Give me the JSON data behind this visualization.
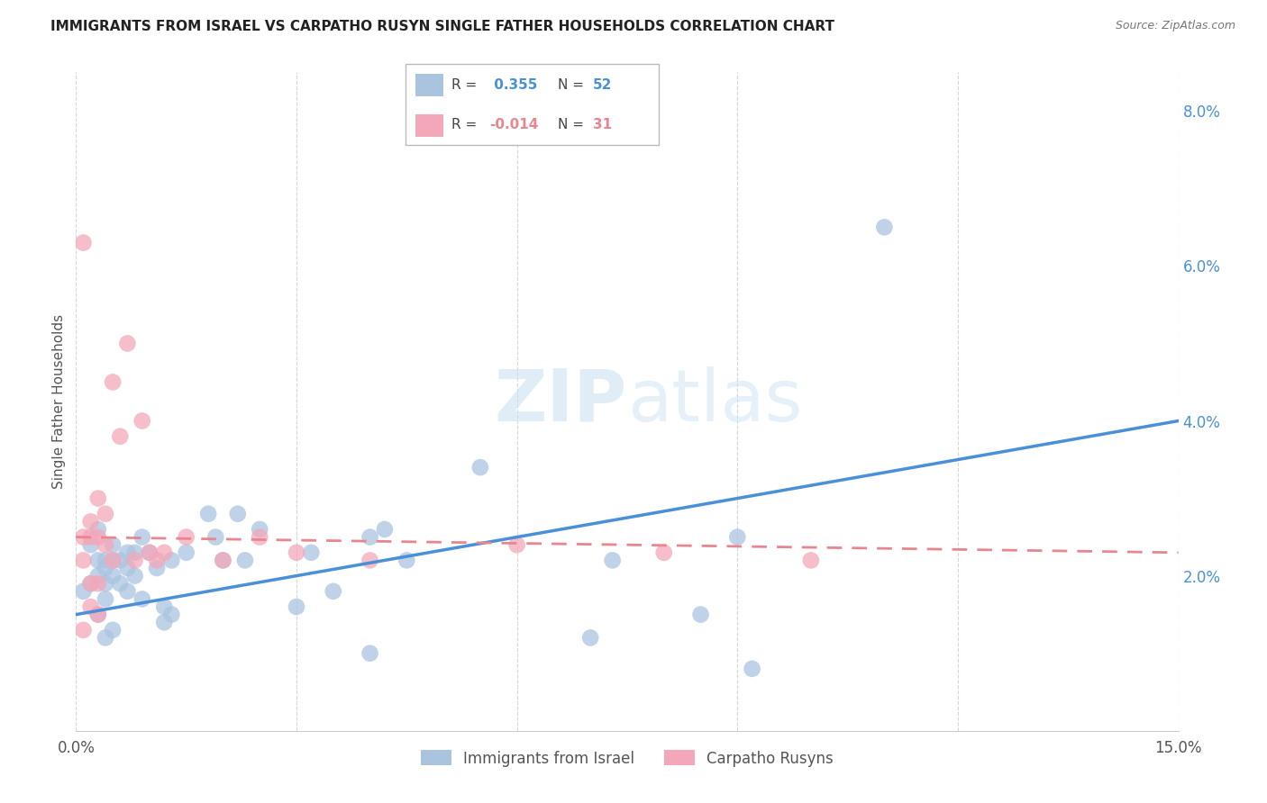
{
  "title": "IMMIGRANTS FROM ISRAEL VS CARPATHO RUSYN SINGLE FATHER HOUSEHOLDS CORRELATION CHART",
  "source": "Source: ZipAtlas.com",
  "ylabel_label": "Single Father Households",
  "xlim": [
    0.0,
    0.15
  ],
  "ylim": [
    0.0,
    0.085
  ],
  "israel_R": 0.355,
  "israel_N": 52,
  "carpatho_R": -0.014,
  "carpatho_N": 31,
  "israel_color": "#aac4e0",
  "carpatho_color": "#f4a7b9",
  "israel_line_color": "#4a90d9",
  "carpatho_line_color": "#e8858f",
  "grid_color": "#cccccc",
  "background_color": "#ffffff",
  "israel_x": [
    0.001,
    0.002,
    0.002,
    0.003,
    0.003,
    0.003,
    0.003,
    0.004,
    0.004,
    0.004,
    0.004,
    0.004,
    0.005,
    0.005,
    0.005,
    0.005,
    0.006,
    0.006,
    0.007,
    0.007,
    0.007,
    0.008,
    0.008,
    0.009,
    0.009,
    0.01,
    0.011,
    0.012,
    0.012,
    0.013,
    0.013,
    0.015,
    0.018,
    0.019,
    0.02,
    0.022,
    0.023,
    0.025,
    0.03,
    0.032,
    0.035,
    0.04,
    0.04,
    0.042,
    0.045,
    0.055,
    0.07,
    0.073,
    0.085,
    0.09,
    0.092,
    0.11
  ],
  "israel_y": [
    0.018,
    0.024,
    0.019,
    0.026,
    0.022,
    0.02,
    0.015,
    0.022,
    0.021,
    0.019,
    0.017,
    0.012,
    0.024,
    0.022,
    0.02,
    0.013,
    0.022,
    0.019,
    0.023,
    0.021,
    0.018,
    0.023,
    0.02,
    0.025,
    0.017,
    0.023,
    0.021,
    0.016,
    0.014,
    0.022,
    0.015,
    0.023,
    0.028,
    0.025,
    0.022,
    0.028,
    0.022,
    0.026,
    0.016,
    0.023,
    0.018,
    0.025,
    0.01,
    0.026,
    0.022,
    0.034,
    0.012,
    0.022,
    0.015,
    0.025,
    0.008,
    0.065
  ],
  "carpatho_x": [
    0.001,
    0.001,
    0.001,
    0.001,
    0.002,
    0.002,
    0.002,
    0.002,
    0.003,
    0.003,
    0.003,
    0.003,
    0.004,
    0.004,
    0.005,
    0.005,
    0.006,
    0.007,
    0.008,
    0.009,
    0.01,
    0.011,
    0.012,
    0.015,
    0.02,
    0.025,
    0.03,
    0.04,
    0.06,
    0.08,
    0.1
  ],
  "carpatho_y": [
    0.063,
    0.025,
    0.022,
    0.013,
    0.027,
    0.025,
    0.019,
    0.016,
    0.03,
    0.025,
    0.019,
    0.015,
    0.028,
    0.024,
    0.045,
    0.022,
    0.038,
    0.05,
    0.022,
    0.04,
    0.023,
    0.022,
    0.023,
    0.025,
    0.022,
    0.025,
    0.023,
    0.022,
    0.024,
    0.023,
    0.022
  ]
}
